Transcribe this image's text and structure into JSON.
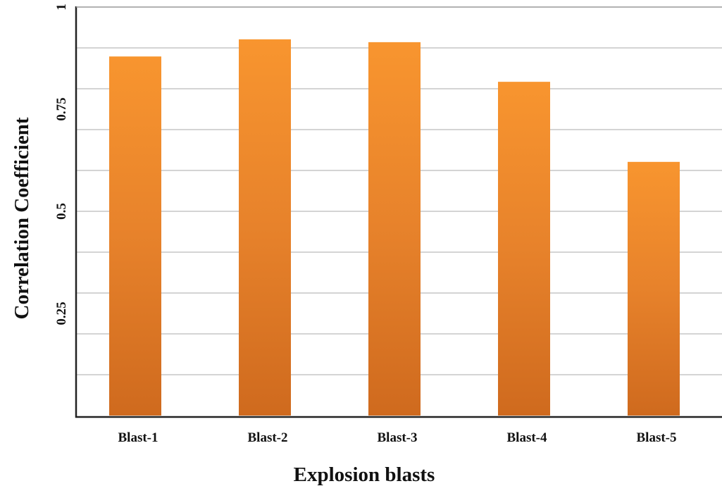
{
  "chart_data": {
    "type": "bar",
    "xlabel": "Explosion blasts",
    "ylabel": "Correlation Coefficient",
    "categories": [
      "Blast-1",
      "Blast-2",
      "Blast-3",
      "Blast-4",
      "Blast-5"
    ],
    "values": [
      0.879,
      0.921,
      0.914,
      0.817,
      0.621
    ],
    "color": "#f28c2c",
    "ylim": [
      0,
      1
    ],
    "yticks": [
      0.25,
      0.5,
      0.75,
      1
    ],
    "ygrid": [
      0.1,
      0.2,
      0.3,
      0.4,
      0.5,
      0.6,
      0.7,
      0.8,
      0.9,
      1
    ],
    "grid": true
  }
}
